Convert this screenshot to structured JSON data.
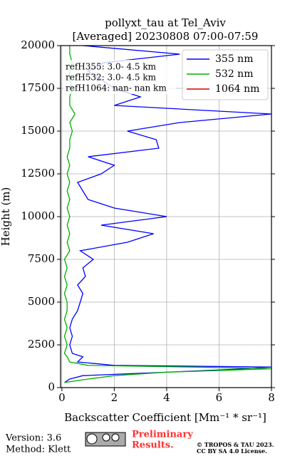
{
  "chart_data": {
    "type": "line",
    "title": "pollyxt_tau at Tel_Aviv",
    "subtitle": "[Averaged] 20230808 07:00-07:59",
    "x_label": "Backscatter Coefficient [Mm⁻¹ * sr⁻¹]",
    "y_label": "Height (m)",
    "annotations": [
      "refH355:  3.0- 4.5 km",
      "refH532:  3.0- 4.5 km",
      "refH1064:  nan- nan km"
    ],
    "y": [
      300,
      500,
      700,
      900,
      1100,
      1200,
      1300,
      1500,
      1800,
      2000,
      2500,
      3000,
      3500,
      4000,
      4500,
      5000,
      5500,
      6000,
      6500,
      7000,
      7500,
      8000,
      8500,
      9000,
      9500,
      10000,
      10500,
      11000,
      11500,
      12000,
      12500,
      13000,
      13500,
      14000,
      14500,
      15000,
      15500,
      16000,
      16500,
      17000,
      17500,
      18000,
      18500,
      19000,
      19500,
      20000
    ],
    "series": [
      {
        "name": "355 nm",
        "color": "#0000ff",
        "values": [
          0.1,
          0.3,
          0.8,
          4,
          7,
          8,
          2,
          0.6,
          0.8,
          0.4,
          0.3,
          0.4,
          0.3,
          0.4,
          0.6,
          0.7,
          0.8,
          0.6,
          0.9,
          0.8,
          1.2,
          0.7,
          2.5,
          3.5,
          1.5,
          4,
          2,
          1,
          0.8,
          0.6,
          1.5,
          2,
          1,
          3.7,
          3.6,
          2.5,
          4.5,
          8,
          2,
          3,
          2,
          1.5,
          1,
          1.6,
          4.5,
          0.8
        ]
      },
      {
        "name": "532 nm",
        "color": "#00b000",
        "values": [
          0.1,
          1,
          2,
          4,
          8,
          5,
          1,
          0.3,
          0.2,
          0.1,
          0.2,
          0.1,
          0.2,
          0.1,
          0.2,
          0.2,
          0.1,
          0.2,
          0.1,
          0.2,
          0.1,
          0.3,
          0.2,
          0.3,
          0.2,
          0.3,
          0.2,
          0.3,
          0.2,
          0.3,
          0.2,
          0.3,
          0.2,
          0.3,
          0.3,
          0.4,
          0.3,
          0.5,
          0.3,
          0.3,
          0.4,
          0.3,
          0.3,
          0.4,
          0.3,
          0.3
        ]
      },
      {
        "name": "1064 nm",
        "color": "#e00000",
        "values": [
          null,
          null,
          null,
          null,
          null,
          null,
          null,
          null,
          null,
          null,
          null,
          null,
          null,
          null,
          null,
          null,
          null,
          null,
          null,
          null,
          null,
          null,
          null,
          null,
          null,
          null,
          null,
          null,
          null,
          null,
          null,
          null,
          null,
          null,
          null,
          null,
          null,
          null,
          null,
          null,
          null,
          null,
          null,
          null,
          null,
          null
        ]
      }
    ],
    "xlim": [
      -0.05,
      8
    ],
    "xticks": [
      0,
      2,
      4,
      6,
      8
    ],
    "ylim": [
      0,
      20000
    ],
    "yticks": [
      0,
      2500,
      5000,
      7500,
      10000,
      12500,
      15000,
      17500,
      20000
    ],
    "grid": true,
    "legend": "upper right"
  },
  "footer": {
    "version": "Version: 3.6",
    "method": "Method: Klett",
    "preliminary": "Preliminary",
    "results": "Results.",
    "copyright": "© TROPOS & TAU 2023.",
    "license": "CC BY SA 4.0 License."
  }
}
